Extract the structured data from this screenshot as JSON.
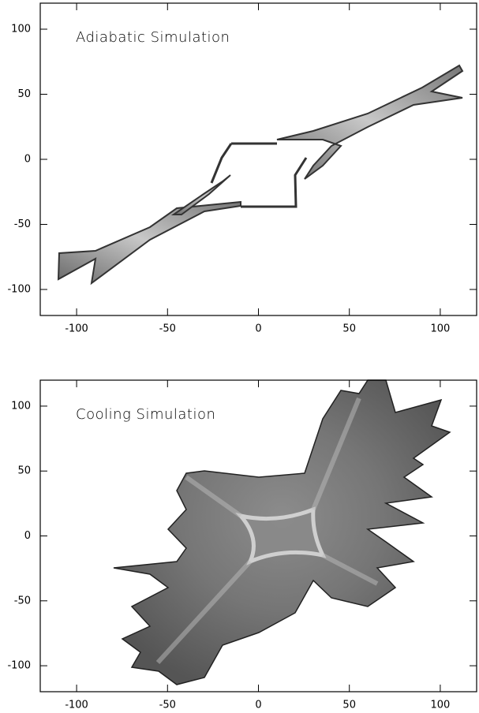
{
  "chart_data": [
    {
      "type": "image",
      "title": "Adiabatic Simulation",
      "xlim": [
        -120,
        120
      ],
      "ylim": [
        -120,
        120
      ],
      "xticks": [
        -100,
        -50,
        0,
        50,
        100
      ],
      "yticks": [
        -100,
        -50,
        0,
        50,
        100
      ]
    },
    {
      "type": "image",
      "title": "Cooling Simulation",
      "xlim": [
        -120,
        120
      ],
      "ylim": [
        -120,
        120
      ],
      "xticks": [
        -100,
        -50,
        0,
        50,
        100
      ],
      "yticks": [
        -100,
        -50,
        0,
        50,
        100
      ]
    }
  ]
}
